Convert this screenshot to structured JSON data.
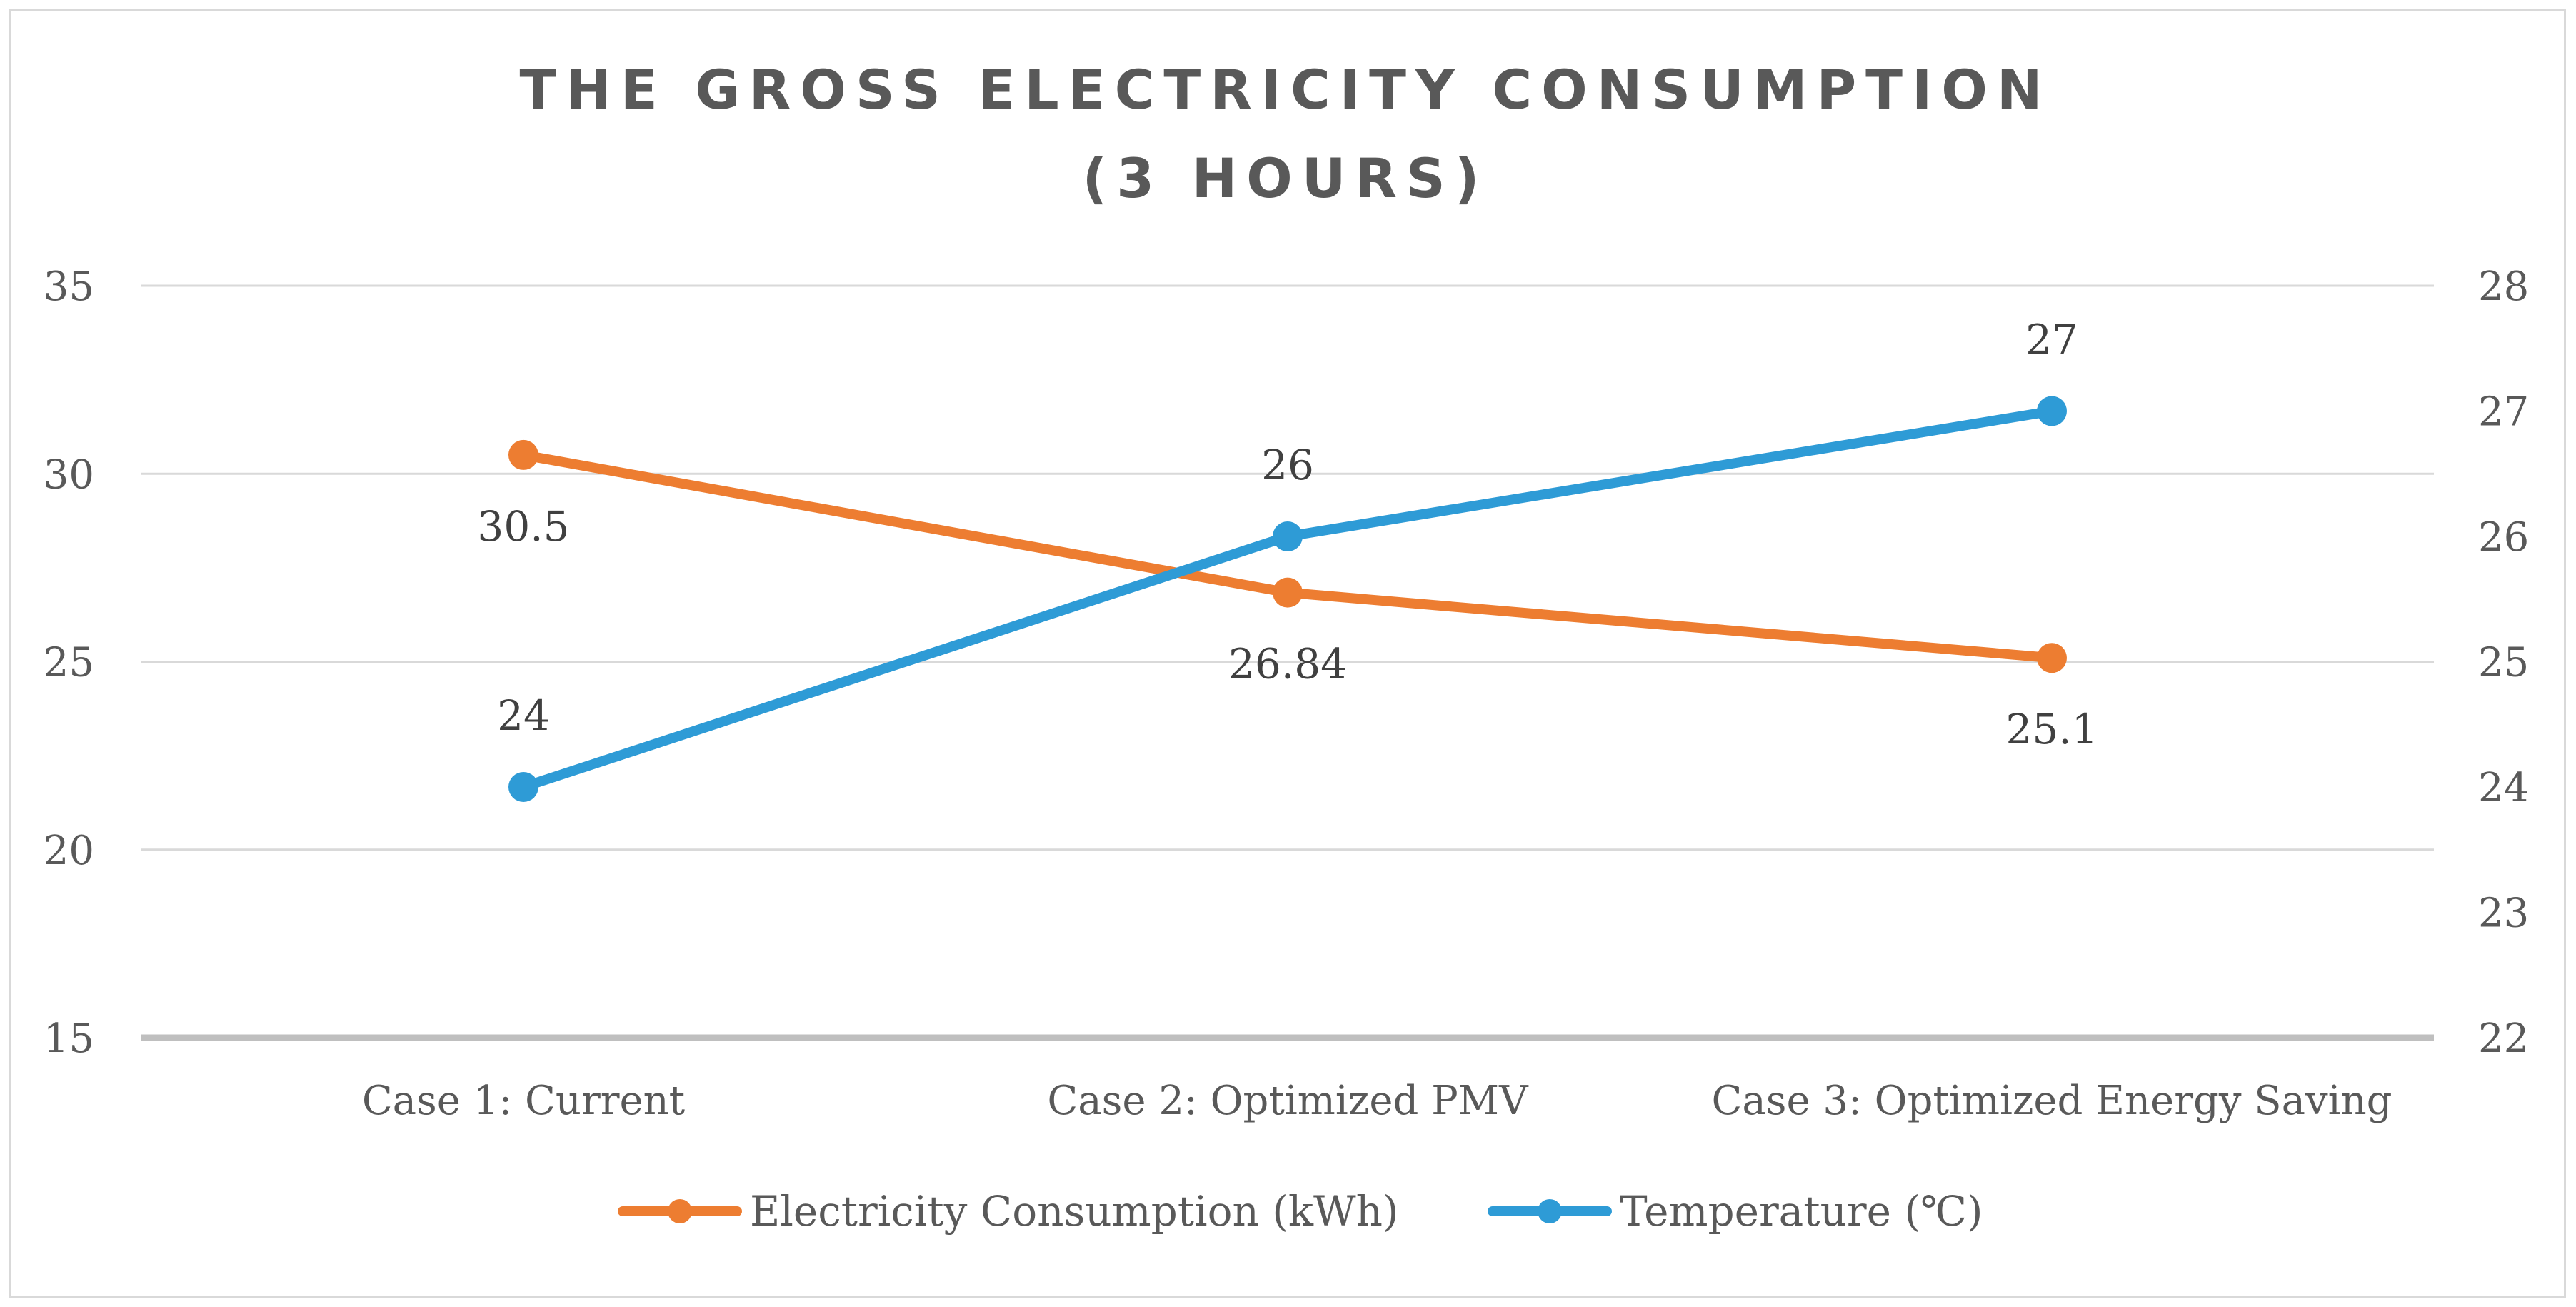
{
  "chart_data": {
    "type": "line",
    "title_lines": [
      "THE GROSS ELECTRICITY CONSUMPTION",
      "(3 HOURS)"
    ],
    "categories": [
      "Case 1: Current",
      "Case 2: Optimized PMV",
      "Case 3: Optimized Energy Saving"
    ],
    "y_left": {
      "min": 15,
      "max": 35,
      "step": 5,
      "ticks": [
        "15",
        "20",
        "25",
        "30",
        "35"
      ]
    },
    "y_right": {
      "min": 22,
      "max": 28,
      "step": 1,
      "ticks": [
        "22",
        "23",
        "24",
        "25",
        "26",
        "27",
        "28"
      ]
    },
    "grid": true,
    "legend_position": "bottom",
    "series": [
      {
        "name": "Electricity Consumption (kWh)",
        "axis": "left",
        "color": "#ed7d31",
        "values": [
          30.5,
          26.84,
          25.1
        ],
        "labels": [
          "30.5",
          "26.84",
          "25.1"
        ],
        "label_position": "below"
      },
      {
        "name": "Temperature (℃)",
        "axis": "right",
        "color": "#2e9bd6",
        "values": [
          24,
          26,
          27
        ],
        "labels": [
          "24",
          "26",
          "27"
        ],
        "label_position": "above"
      }
    ]
  }
}
